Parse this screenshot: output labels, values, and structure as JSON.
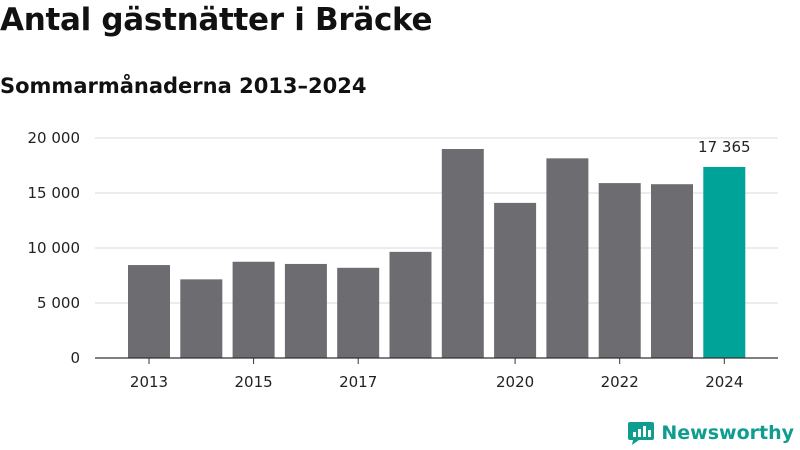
{
  "title": "Antal gästnätter i Bräcke",
  "subtitle": "Sommarmånaderna 2013–2024",
  "brand": {
    "name": "Newsworthy",
    "color": "#0f9d8f",
    "icon": "newsworthy-logo-icon"
  },
  "colors": {
    "bar": "#6d6c71",
    "highlight": "#00a398",
    "grid": "#d9d9d9",
    "axis": "#333333"
  },
  "chart_data": {
    "type": "bar",
    "title": "Antal gästnätter i Bräcke",
    "subtitle": "Sommarmånaderna 2013–2024",
    "xlabel": "",
    "ylabel": "",
    "categories": [
      "2013",
      "2014",
      "2015",
      "2016",
      "2017",
      "2018",
      "2019",
      "2020",
      "2021",
      "2022",
      "2023",
      "2024"
    ],
    "values": [
      8450,
      7150,
      8750,
      8550,
      8200,
      9650,
      19000,
      14100,
      18150,
      15900,
      15800,
      17365
    ],
    "highlight_index": 11,
    "data_labels": [
      {
        "index": 11,
        "text": "17 365"
      }
    ],
    "x_tick_labels": [
      "2013",
      "2015",
      "2017",
      "2020",
      "2022",
      "2024"
    ],
    "y_ticks": [
      {
        "value": 0,
        "label": "0"
      },
      {
        "value": 5000,
        "label": "5 000"
      },
      {
        "value": 10000,
        "label": "10 000"
      },
      {
        "value": 15000,
        "label": "15 000"
      },
      {
        "value": 20000,
        "label": "20 000"
      }
    ],
    "ylim": [
      0,
      20000
    ],
    "grid": true,
    "legend": "none"
  }
}
